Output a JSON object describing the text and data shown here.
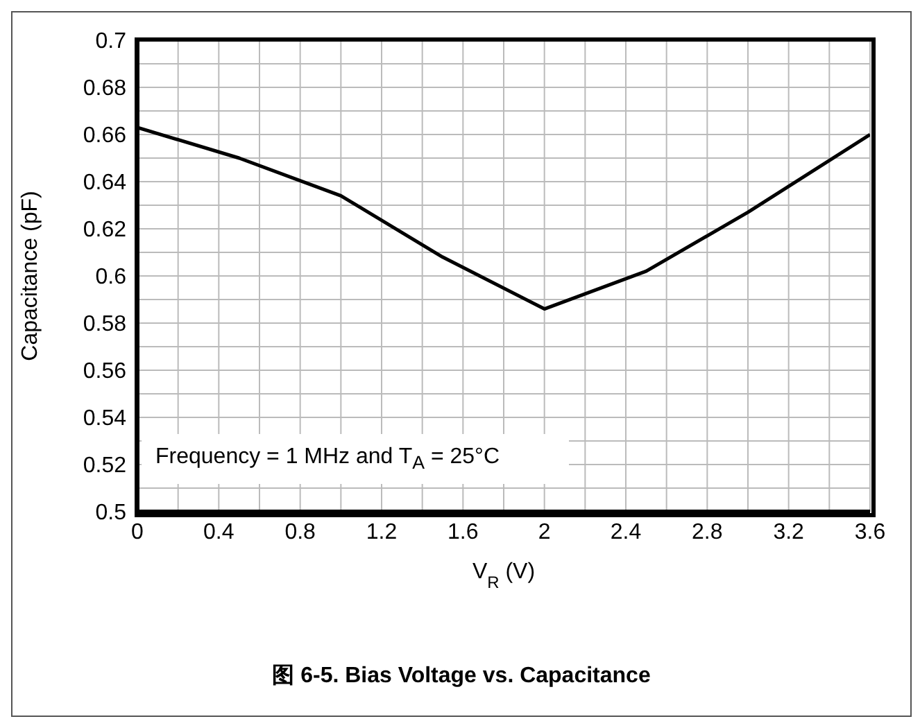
{
  "chart_data": {
    "type": "line",
    "title": "图 6-5. Bias Voltage vs. Capacitance",
    "xlabel": "V$_{R}$ (V)",
    "ylabel": "Capacitance (pF)",
    "annotations": [
      "Frequency = 1 MHz and T$_{A}$ = 25°C"
    ],
    "x": [
      0,
      0.5,
      1,
      1.5,
      2,
      2.5,
      3,
      3.6
    ],
    "series": [
      {
        "color": "#000000",
        "values": [
          0.663,
          0.65,
          0.634,
          0.608,
          0.586,
          0.602,
          0.627,
          0.66
        ]
      }
    ],
    "xlim": [
      0,
      3.6
    ],
    "xticks": [
      0,
      {
        "value": 0.2,
        "label": null
      },
      0.4,
      {
        "value": 0.6,
        "label": null
      },
      0.8,
      {
        "value": 1.0,
        "label": null
      },
      1.2,
      {
        "value": 1.4,
        "label": null
      },
      1.6,
      {
        "value": 1.8,
        "label": null
      },
      2,
      {
        "value": 2.2,
        "label": null
      },
      2.4,
      {
        "value": 2.6,
        "label": null
      },
      2.8,
      {
        "value": 3.0,
        "label": null
      },
      3.2,
      {
        "value": 3.4,
        "label": null
      },
      3.6
    ],
    "ylim": [
      0.5,
      0.7
    ],
    "yticks": [
      0.5,
      {
        "value": 0.51,
        "label": null
      },
      0.52,
      {
        "value": 0.53,
        "label": null
      },
      0.54,
      {
        "value": 0.55,
        "label": null
      },
      0.56,
      {
        "value": 0.57,
        "label": null
      },
      0.58,
      {
        "value": 0.59,
        "label": null
      },
      0.6,
      {
        "value": 0.61,
        "label": null
      },
      0.62,
      {
        "value": 0.63,
        "label": null
      },
      0.64,
      {
        "value": 0.65,
        "label": null
      },
      0.66,
      {
        "value": 0.67,
        "label": null
      },
      0.68,
      {
        "value": 0.69,
        "label": null
      },
      0.7
    ],
    "grid": true,
    "marker": "none",
    "line_style": "solid",
    "legend": false
  }
}
